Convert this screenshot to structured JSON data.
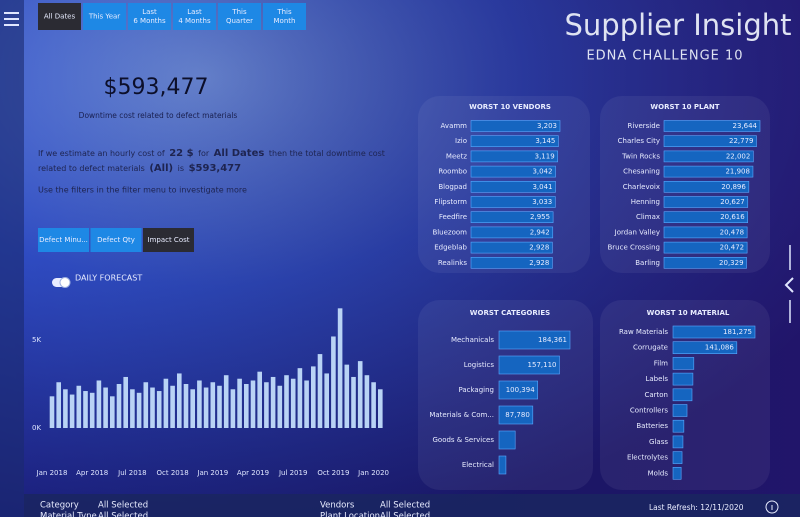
{
  "header": {
    "title": "Supplier Insight",
    "subtitle": "EDNA CHALLENGE 10"
  },
  "date_filters": [
    "All Dates",
    "This Year",
    "Last 6 Months",
    "Last 4 Months",
    "This Quarter",
    "This Month"
  ],
  "kpi": {
    "value": "$593,477",
    "caption": "Downtime cost related to defect materials"
  },
  "narrative": {
    "parts": [
      "If we estimate an hourly cost of",
      "22 $",
      "for",
      "All Dates",
      "then the total downtime cost",
      "related to defect materials",
      "(All)",
      "is",
      "$593,477"
    ],
    "hint": "Use the filters in the filter menu to investigate more"
  },
  "measure_buttons": [
    "Defect Minu...",
    "Defect Qty",
    "Impact Cost"
  ],
  "toggle_label": "DAILY FORECAST",
  "chart_data": [
    {
      "type": "bar",
      "orientation": "vertical",
      "color": "#b9d3f5",
      "categories": [
        "Jan 2018",
        null,
        null,
        null,
        null,
        null,
        "Apr 2018",
        null,
        null,
        null,
        null,
        null,
        "Jul 2018",
        null,
        null,
        null,
        null,
        null,
        "Oct 2018",
        null,
        null,
        null,
        null,
        null,
        "Jan 2019",
        null,
        null,
        null,
        null,
        null,
        "Apr 2019",
        null,
        null,
        null,
        null,
        null,
        "Jul 2019",
        null,
        null,
        null,
        null,
        null,
        "Oct 2019",
        null,
        null,
        null,
        null,
        null,
        "Jan 2020",
        null
      ],
      "values": [
        1800,
        2600,
        2200,
        1900,
        2400,
        2100,
        2000,
        2700,
        2300,
        1800,
        2500,
        2900,
        2200,
        2000,
        2600,
        2300,
        2100,
        2800,
        2400,
        3100,
        2500,
        2200,
        2700,
        2300,
        2600,
        2400,
        3000,
        2200,
        2800,
        2500,
        2700,
        3200,
        2600,
        2900,
        2400,
        3000,
        2800,
        3400,
        2700,
        3500,
        4200,
        3100,
        5200,
        6800,
        3600,
        2900,
        3800,
        3000,
        2600,
        2200
      ],
      "ylim": [
        0,
        6500
      ],
      "yticks": [
        {
          "value": 0,
          "label": "0K"
        },
        {
          "value": 5000,
          "label": "5K"
        }
      ]
    },
    {
      "type": "bar",
      "orientation": "horizontal",
      "title": "WORST 10 VENDORS",
      "color": "#1565c0",
      "categories": [
        "Avamm",
        "Izio",
        "Meetz",
        "Roombo",
        "Blogpad",
        "Flipstorm",
        "Feedfire",
        "Bluezoom",
        "Edgeblab",
        "Realinks"
      ],
      "values": [
        3203,
        3145,
        3119,
        3042,
        3041,
        3033,
        2955,
        2942,
        2928,
        2928
      ],
      "value_labels": [
        "3,203",
        "3,145",
        "3,119",
        "3,042",
        "3,041",
        "3,033",
        "2,955",
        "2,942",
        "2,928",
        "2,928"
      ]
    },
    {
      "type": "bar",
      "orientation": "horizontal",
      "title": "WORST 10 PLANT",
      "color": "#1565c0",
      "categories": [
        "Riverside",
        "Charles City",
        "Twin Rocks",
        "Chesaning",
        "Charlevoix",
        "Henning",
        "Climax",
        "Jordan Valley",
        "Bruce Crossing",
        "Barling"
      ],
      "values": [
        23644,
        22779,
        22002,
        21908,
        20896,
        20627,
        20616,
        20478,
        20472,
        20329
      ],
      "value_labels": [
        "23,644",
        "22,779",
        "22,002",
        "21,908",
        "20,896",
        "20,627",
        "20,616",
        "20,478",
        "20,472",
        "20,329"
      ]
    },
    {
      "type": "bar",
      "orientation": "horizontal",
      "title": "WORST CATEGORIES",
      "color": "#1565c0",
      "categories": [
        "Mechanicals",
        "Logistics",
        "Packaging",
        "Materials & Com...",
        "Goods & Services",
        "Electrical"
      ],
      "values": [
        184361,
        157110,
        100394,
        87780,
        42000,
        18000
      ],
      "value_labels": [
        "184,361",
        "157,110",
        "100,394",
        "87,780",
        null,
        null
      ]
    },
    {
      "type": "bar",
      "orientation": "horizontal",
      "title": "WORST 10 MATERIAL",
      "color": "#1565c0",
      "categories": [
        "Raw Materials",
        "Corrugate",
        "Film",
        "Labels",
        "Carton",
        "Controllers",
        "Batteries",
        "Glass",
        "Electrolytes",
        "Molds"
      ],
      "values": [
        181275,
        141086,
        46000,
        44000,
        42000,
        31000,
        24000,
        22000,
        20000,
        18000
      ],
      "value_labels": [
        "181,275",
        "141,086",
        null,
        null,
        null,
        null,
        null,
        null,
        null,
        null
      ]
    }
  ],
  "footer": {
    "filters": [
      {
        "label": "Category",
        "value": "All Selected"
      },
      {
        "label": "Material Type",
        "value": "All Selected"
      },
      {
        "label": "Vendors",
        "value": "All Selected"
      },
      {
        "label": "Plant Location",
        "value": "All Selected"
      }
    ],
    "last_refresh": "Last Refresh: 12/11/2020"
  }
}
